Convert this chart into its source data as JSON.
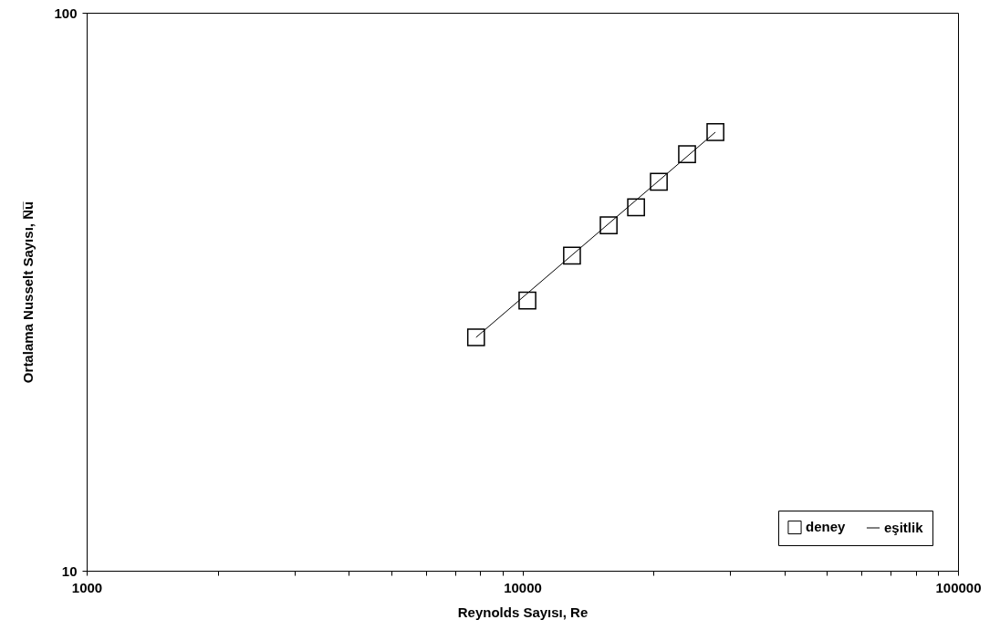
{
  "chart_data": {
    "type": "scatter",
    "xlabel": "Reynolds Sayısı,  Re",
    "ylabel": "Ortalama Nusselt Sayısı, N̅u̅",
    "log": "xy",
    "xlim": [
      1000,
      100000
    ],
    "ylim": [
      10,
      100
    ],
    "xticks": [
      1000,
      {
        "value": 2000,
        "label": null
      },
      {
        "value": 3000,
        "label": null
      },
      {
        "value": 4000,
        "label": null
      },
      {
        "value": 5000,
        "label": null
      },
      {
        "value": 6000,
        "label": null
      },
      {
        "value": 7000,
        "label": null
      },
      {
        "value": 8000,
        "label": null
      },
      {
        "value": 9000,
        "label": null
      },
      10000,
      {
        "value": 20000,
        "label": null
      },
      {
        "value": 30000,
        "label": null
      },
      {
        "value": 40000,
        "label": null
      },
      {
        "value": 50000,
        "label": null
      },
      {
        "value": 60000,
        "label": null
      },
      {
        "value": 70000,
        "label": null
      },
      {
        "value": 80000,
        "label": null
      },
      {
        "value": 90000,
        "label": null
      },
      100000
    ],
    "yticks": [
      10,
      100
    ],
    "grid": false,
    "legend": "bottom right",
    "series": [
      {
        "name": "deney",
        "type": "scatter",
        "marker": "square",
        "color": "#000000",
        "x": [
          7830,
          10270,
          13000,
          15780,
          18240,
          20570,
          23880,
          27740
        ],
        "values": [
          26.2,
          30.5,
          36.7,
          41.6,
          44.8,
          49.8,
          55.8,
          61.1
        ]
      },
      {
        "name": "eşitlik",
        "type": "line",
        "line_style": "solid",
        "color": "#000000",
        "x": [
          7830,
          27740
        ],
        "values": [
          26.2,
          61.1
        ]
      }
    ]
  }
}
